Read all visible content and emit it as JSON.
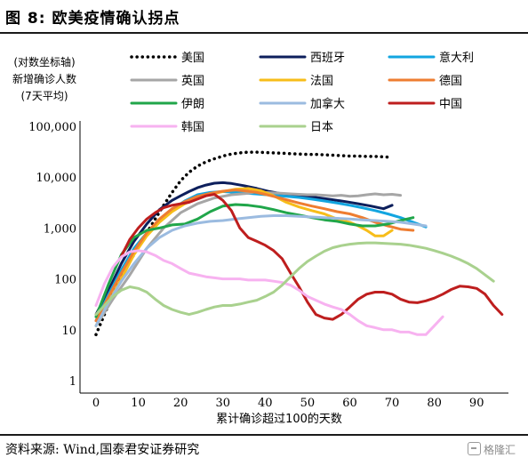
{
  "figure": {
    "title": "图 8:  欧美疫情确认拐点",
    "source": "资料来源:  Wind,国泰君安证券研究",
    "watermark": "格隆汇"
  },
  "chart_data": {
    "type": "line",
    "ylabel_lines": [
      "(对数坐标轴)",
      "新增确诊人数",
      "(7天平均)"
    ],
    "xlabel": "累计确诊超过100的天数",
    "yscale": "log",
    "ylim": [
      1,
      100000
    ],
    "xlim": [
      0,
      95
    ],
    "yticks": [
      {
        "value": 1,
        "label": "1"
      },
      {
        "value": 10,
        "label": "10"
      },
      {
        "value": 100,
        "label": "100"
      },
      {
        "value": 1000,
        "label": "1,000"
      },
      {
        "value": 10000,
        "label": "10,000"
      },
      {
        "value": 100000,
        "label": "100,000"
      }
    ],
    "xticks": [
      0,
      10,
      20,
      30,
      40,
      50,
      60,
      70,
      80,
      90
    ],
    "grid": false,
    "legend": "top",
    "series": [
      {
        "name": "美国",
        "color": "#000000",
        "dash": "dotted",
        "x": [
          0,
          2,
          4,
          6,
          8,
          10,
          12,
          14,
          16,
          18,
          20,
          22,
          24,
          26,
          28,
          30,
          32,
          34,
          36,
          38,
          40,
          42,
          44,
          46,
          48,
          50,
          52,
          54,
          56,
          58,
          60,
          62,
          64,
          66,
          68,
          70
        ],
        "y": [
          8,
          20,
          50,
          110,
          220,
          420,
          800,
          1500,
          2800,
          5000,
          8500,
          12500,
          16500,
          20000,
          23000,
          26000,
          28500,
          30000,
          31000,
          31000,
          30500,
          30000,
          29500,
          29000,
          28500,
          28000,
          28000,
          27500,
          27000,
          26500,
          26000,
          26000,
          25500,
          25500,
          25000,
          24500
        ]
      },
      {
        "name": "西班牙",
        "color": "#0d1f5c",
        "dash": "solid",
        "x": [
          0,
          3,
          6,
          9,
          12,
          15,
          18,
          20,
          22,
          24,
          26,
          28,
          30,
          32,
          35,
          38,
          41,
          44,
          47,
          50,
          53,
          56,
          59,
          62,
          65,
          68,
          70
        ],
        "y": [
          20,
          60,
          200,
          550,
          1200,
          2300,
          3500,
          4300,
          5200,
          6200,
          7000,
          7600,
          7800,
          7500,
          6800,
          6000,
          5200,
          4700,
          4500,
          4200,
          3900,
          3600,
          3300,
          3000,
          2700,
          2400,
          2800
        ]
      },
      {
        "name": "意大利",
        "color": "#12a5e0",
        "dash": "solid",
        "x": [
          0,
          3,
          6,
          9,
          12,
          15,
          18,
          21,
          24,
          27,
          30,
          33,
          36,
          39,
          42,
          45,
          48,
          51,
          54,
          57,
          60,
          63,
          66,
          69,
          72,
          75,
          78
        ],
        "y": [
          15,
          50,
          150,
          400,
          800,
          1400,
          2300,
          3400,
          4500,
          5000,
          5200,
          5000,
          4800,
          4600,
          4400,
          4200,
          4000,
          3700,
          3400,
          3100,
          2800,
          2500,
          2200,
          1900,
          1600,
          1300,
          1050
        ]
      },
      {
        "name": "英国",
        "color": "#a6a6a6",
        "dash": "solid",
        "x": [
          0,
          4,
          8,
          12,
          16,
          20,
          24,
          28,
          32,
          36,
          38,
          40,
          42,
          44,
          46,
          48,
          50,
          52,
          54,
          56,
          58,
          60,
          62,
          64,
          66,
          68,
          70,
          72
        ],
        "y": [
          12,
          40,
          120,
          400,
          1000,
          2000,
          3000,
          3900,
          4500,
          4800,
          5200,
          5000,
          4900,
          4800,
          4700,
          4600,
          4500,
          4500,
          4400,
          4300,
          4400,
          4200,
          4300,
          4500,
          4700,
          4500,
          4600,
          4400
        ]
      },
      {
        "name": "法国",
        "color": "#f7bd1a",
        "dash": "solid",
        "x": [
          0,
          3,
          6,
          9,
          12,
          15,
          18,
          21,
          24,
          27,
          30,
          33,
          36,
          39,
          42,
          45,
          48,
          51,
          54,
          57,
          60,
          62,
          64,
          66,
          68,
          70
        ],
        "y": [
          12,
          35,
          100,
          300,
          700,
          1300,
          2100,
          3000,
          3900,
          4600,
          5200,
          5800,
          6000,
          5400,
          4300,
          3200,
          2600,
          2200,
          1900,
          1500,
          1300,
          1100,
          900,
          700,
          700,
          900
        ]
      },
      {
        "name": "德国",
        "color": "#ee7d31",
        "dash": "solid",
        "x": [
          0,
          3,
          6,
          9,
          12,
          15,
          18,
          21,
          24,
          27,
          30,
          33,
          36,
          38,
          40,
          42,
          45,
          48,
          51,
          54,
          57,
          60,
          63,
          66,
          69,
          72,
          75
        ],
        "y": [
          15,
          45,
          130,
          350,
          800,
          1500,
          2400,
          3300,
          4200,
          4800,
          5300,
          5600,
          5300,
          5000,
          4600,
          4200,
          3600,
          3100,
          2700,
          2400,
          2100,
          1900,
          1600,
          1300,
          1100,
          950,
          900
        ]
      },
      {
        "name": "伊朗",
        "color": "#20a64a",
        "dash": "solid",
        "x": [
          0,
          3,
          6,
          9,
          12,
          15,
          18,
          21,
          24,
          27,
          30,
          33,
          36,
          39,
          42,
          45,
          48,
          51,
          54,
          57,
          60,
          63,
          66,
          69,
          72,
          75
        ],
        "y": [
          18,
          80,
          300,
          650,
          900,
          1000,
          1150,
          1200,
          1500,
          2100,
          2700,
          2900,
          2800,
          2600,
          2300,
          2000,
          1800,
          1600,
          1450,
          1350,
          1200,
          1100,
          1100,
          1200,
          1400,
          1600
        ]
      },
      {
        "name": "加拿大",
        "color": "#9bbbe0",
        "dash": "solid",
        "x": [
          0,
          3,
          6,
          9,
          12,
          15,
          18,
          21,
          24,
          27,
          30,
          33,
          36,
          39,
          42,
          45,
          48,
          51,
          54,
          57,
          60,
          63,
          66,
          69,
          72,
          75,
          78
        ],
        "y": [
          12,
          35,
          90,
          200,
          400,
          650,
          900,
          1100,
          1250,
          1350,
          1400,
          1500,
          1600,
          1700,
          1750,
          1750,
          1700,
          1650,
          1600,
          1550,
          1500,
          1450,
          1400,
          1350,
          1300,
          1200,
          1100
        ]
      },
      {
        "name": "中国",
        "color": "#be1e1e",
        "dash": "solid",
        "x": [
          6,
          8,
          10,
          12,
          14,
          16,
          18,
          20,
          22,
          24,
          26,
          28,
          30,
          32,
          34,
          36,
          38,
          40,
          42,
          44,
          46,
          48,
          50,
          52,
          54,
          56,
          58,
          60,
          62,
          64,
          66,
          68,
          70,
          72,
          74,
          76,
          78,
          80,
          82,
          84,
          86,
          88,
          90,
          92,
          94,
          96
        ],
        "y": [
          280,
          600,
          1000,
          1500,
          2000,
          2500,
          2800,
          3000,
          3200,
          3700,
          4300,
          4600,
          3500,
          2200,
          1000,
          650,
          550,
          460,
          360,
          250,
          130,
          70,
          35,
          20,
          17,
          16,
          20,
          28,
          40,
          50,
          55,
          55,
          50,
          40,
          35,
          34,
          37,
          42,
          50,
          62,
          72,
          70,
          65,
          50,
          30,
          20
        ]
      },
      {
        "name": "韩国",
        "color": "#f7b2f0",
        "dash": "solid",
        "x": [
          0,
          2,
          4,
          6,
          8,
          10,
          12,
          14,
          16,
          18,
          20,
          22,
          24,
          26,
          28,
          30,
          32,
          34,
          36,
          38,
          40,
          42,
          44,
          46,
          48,
          50,
          52,
          54,
          56,
          58,
          60,
          62,
          64,
          66,
          68,
          70,
          72,
          74,
          76,
          78,
          80,
          82
        ],
        "y": [
          30,
          80,
          170,
          270,
          340,
          360,
          340,
          290,
          230,
          200,
          160,
          130,
          120,
          110,
          105,
          100,
          100,
          100,
          95,
          95,
          95,
          90,
          85,
          75,
          60,
          45,
          38,
          32,
          28,
          25,
          20,
          15,
          12,
          11,
          10,
          10,
          9,
          9,
          8,
          8,
          12,
          18
        ]
      },
      {
        "name": "日本",
        "color": "#a9d18e",
        "dash": "solid",
        "x": [
          0,
          2,
          4,
          6,
          8,
          10,
          12,
          14,
          16,
          18,
          20,
          22,
          24,
          26,
          28,
          30,
          32,
          34,
          36,
          38,
          40,
          42,
          44,
          46,
          48,
          50,
          52,
          54,
          56,
          58,
          60,
          62,
          64,
          66,
          68,
          70,
          72,
          74,
          76,
          78,
          80,
          82,
          84,
          86,
          88,
          90,
          92,
          94
        ],
        "y": [
          20,
          30,
          45,
          60,
          70,
          65,
          55,
          40,
          30,
          25,
          22,
          20,
          22,
          25,
          28,
          30,
          30,
          32,
          35,
          38,
          45,
          55,
          75,
          110,
          160,
          220,
          280,
          350,
          410,
          450,
          480,
          500,
          510,
          510,
          500,
          490,
          480,
          460,
          430,
          400,
          360,
          320,
          280,
          240,
          200,
          160,
          120,
          90
        ]
      }
    ]
  }
}
